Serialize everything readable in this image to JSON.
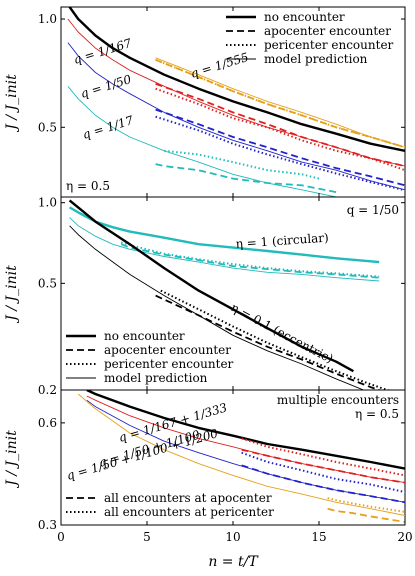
{
  "chart_data": [
    {
      "type": "line",
      "id": "top",
      "ylabel": "J / J_init",
      "xlim": [
        0,
        20
      ],
      "ylim": [
        0.32,
        1.08
      ],
      "yscale": "log",
      "yticks": [
        0.5,
        1.0
      ],
      "ytick_labels": [
        "0.5",
        "1.0"
      ],
      "legend_placement": "top-right",
      "legend": [
        {
          "label": "no encounter",
          "style": "solid-thick"
        },
        {
          "label": "apocenter encounter",
          "style": "dashed"
        },
        {
          "label": "pericenter encounter",
          "style": "dotted"
        },
        {
          "label": "model prediction",
          "style": "solid-thin"
        }
      ],
      "annotations": [
        {
          "text": "η = 0.5",
          "placement": "bottom-left"
        },
        {
          "text": "q = 1/555",
          "color": "#e6a11c"
        },
        {
          "text": "q = 1/167",
          "color": "#e0201e"
        },
        {
          "text": "q = 1/50",
          "color": "#2222cc"
        },
        {
          "text": "q = 1/17",
          "color": "#22bbbb"
        }
      ],
      "series": [
        {
          "style": "solid-thick",
          "color": "#000000",
          "x": [
            0.5,
            1,
            2,
            3,
            4,
            6,
            8,
            10,
            12,
            14,
            16,
            18,
            20
          ],
          "y": [
            1.08,
            1.0,
            0.9,
            0.83,
            0.78,
            0.7,
            0.64,
            0.59,
            0.55,
            0.51,
            0.48,
            0.45,
            0.43
          ]
        },
        {
          "style": "solid-thin",
          "color": "#e6a11c",
          "x": [
            5.5,
            8,
            10,
            12,
            14,
            16,
            18,
            20
          ],
          "y": [
            0.78,
            0.7,
            0.64,
            0.59,
            0.55,
            0.51,
            0.47,
            0.44
          ]
        },
        {
          "style": "dashed",
          "color": "#e6a11c",
          "x": [
            5.5,
            8,
            10,
            12,
            14,
            16,
            18,
            20
          ],
          "y": [
            0.77,
            0.69,
            0.63,
            0.58,
            0.54,
            0.5,
            0.47,
            0.44
          ]
        },
        {
          "style": "dotted",
          "color": "#e6a11c",
          "x": [
            5.5,
            8,
            10,
            12,
            14,
            16,
            18,
            20
          ],
          "y": [
            0.77,
            0.69,
            0.63,
            0.58,
            0.54,
            0.5,
            0.47,
            0.44
          ]
        },
        {
          "style": "solid-thin",
          "color": "#e0201e",
          "x": [
            0.4,
            1,
            2,
            3,
            4,
            6,
            8,
            10,
            12,
            14,
            16,
            18,
            20
          ],
          "y": [
            1.0,
            0.92,
            0.83,
            0.77,
            0.72,
            0.65,
            0.59,
            0.54,
            0.5,
            0.47,
            0.44,
            0.41,
            0.39
          ]
        },
        {
          "style": "dashed",
          "color": "#e0201e",
          "x": [
            5.5,
            8,
            10,
            12,
            14,
            16,
            18,
            20
          ],
          "y": [
            0.66,
            0.6,
            0.55,
            0.51,
            0.47,
            0.44,
            0.41,
            0.39
          ]
        },
        {
          "style": "dotted",
          "color": "#e0201e",
          "x": [
            5.5,
            8,
            10,
            12,
            14,
            16,
            18,
            20
          ],
          "y": [
            0.64,
            0.58,
            0.53,
            0.5,
            0.46,
            0.43,
            0.41,
            0.38
          ]
        },
        {
          "style": "solid-thin",
          "color": "#2222cc",
          "x": [
            0.4,
            1,
            2,
            3,
            4,
            6,
            8,
            10,
            12,
            14,
            16,
            18,
            20
          ],
          "y": [
            0.86,
            0.79,
            0.71,
            0.66,
            0.62,
            0.55,
            0.5,
            0.46,
            0.43,
            0.4,
            0.38,
            0.355,
            0.335
          ]
        },
        {
          "style": "dashed",
          "color": "#2222cc",
          "x": [
            5.5,
            8,
            10,
            12,
            14,
            16,
            18,
            20
          ],
          "y": [
            0.56,
            0.51,
            0.47,
            0.44,
            0.41,
            0.385,
            0.365,
            0.345
          ]
        },
        {
          "style": "dotted",
          "color": "#2222cc",
          "x": [
            5.5,
            8,
            10,
            12,
            14,
            16,
            18,
            20
          ],
          "y": [
            0.535,
            0.49,
            0.45,
            0.42,
            0.395,
            0.372,
            0.352,
            0.334
          ]
        },
        {
          "style": "solid-thin",
          "color": "#22bbbb",
          "x": [
            0.4,
            1,
            2,
            3,
            4,
            6,
            8,
            10,
            12,
            14,
            16,
            17
          ],
          "y": [
            0.65,
            0.6,
            0.54,
            0.5,
            0.47,
            0.43,
            0.4,
            0.37,
            0.35,
            0.335,
            0.32,
            0.315
          ]
        },
        {
          "style": "dashed",
          "color": "#22bbbb",
          "x": [
            5.5,
            6,
            8,
            10,
            12,
            14,
            16
          ],
          "y": [
            0.395,
            0.39,
            0.38,
            0.36,
            0.35,
            0.345,
            0.33
          ]
        },
        {
          "style": "dotted",
          "color": "#22bbbb",
          "x": [
            6,
            8,
            10,
            12,
            14,
            15
          ],
          "y": [
            0.43,
            0.42,
            0.4,
            0.38,
            0.37,
            0.36
          ]
        }
      ]
    },
    {
      "type": "line",
      "id": "middle",
      "ylabel": "J / J_init",
      "xlim": [
        0,
        20
      ],
      "ylim": [
        0.2,
        1.05
      ],
      "yscale": "log",
      "yticks": [
        0.2,
        0.5,
        1.0
      ],
      "ytick_labels": [
        "0.2",
        "0.5",
        "1.0"
      ],
      "legend_placement": "bottom-left",
      "legend": [
        {
          "label": "no encounter",
          "style": "solid-thick"
        },
        {
          "label": "apocenter encounter",
          "style": "dashed"
        },
        {
          "label": "pericenter encounter",
          "style": "dotted"
        },
        {
          "label": "model prediction",
          "style": "solid-thin"
        }
      ],
      "annotations": [
        {
          "text": "q = 1/50",
          "placement": "top-right"
        },
        {
          "text": "η = 1 (circular)",
          "color": "#22bbbb"
        },
        {
          "text": "η = 0.1 (eccentric)",
          "color": "#000000"
        }
      ],
      "series": [
        {
          "style": "solid-thick",
          "color": "#22bbbb",
          "x": [
            0.5,
            1,
            2,
            3,
            4,
            6,
            8,
            10,
            12,
            14,
            16,
            18.5
          ],
          "y": [
            0.96,
            0.92,
            0.85,
            0.81,
            0.78,
            0.74,
            0.7,
            0.68,
            0.66,
            0.64,
            0.62,
            0.6
          ]
        },
        {
          "style": "solid-thin",
          "color": "#22bbbb",
          "x": [
            0.5,
            1,
            2,
            3,
            4,
            6,
            8,
            10,
            12,
            14,
            16,
            18.5
          ],
          "y": [
            0.88,
            0.82,
            0.75,
            0.7,
            0.67,
            0.63,
            0.6,
            0.57,
            0.55,
            0.54,
            0.525,
            0.51
          ]
        },
        {
          "style": "dashed",
          "color": "#22bbbb",
          "x": [
            3.5,
            4,
            6,
            8,
            10,
            12,
            14,
            16,
            18.5
          ],
          "y": [
            0.7,
            0.68,
            0.64,
            0.61,
            0.58,
            0.565,
            0.55,
            0.54,
            0.525
          ]
        },
        {
          "style": "dotted",
          "color": "#22bbbb",
          "x": [
            3.5,
            4,
            6,
            8,
            10,
            12,
            14,
            16,
            18.5
          ],
          "y": [
            0.71,
            0.695,
            0.645,
            0.615,
            0.59,
            0.57,
            0.555,
            0.545,
            0.53
          ]
        },
        {
          "style": "solid-thick",
          "color": "#000000",
          "x": [
            0.5,
            1,
            2,
            4,
            6,
            8,
            10,
            12,
            14,
            16,
            17
          ],
          "y": [
            1.02,
            0.96,
            0.85,
            0.7,
            0.57,
            0.47,
            0.4,
            0.34,
            0.29,
            0.255,
            0.235
          ]
        },
        {
          "style": "solid-thin",
          "color": "#000000",
          "x": [
            0.5,
            1,
            2,
            4,
            6,
            8,
            10,
            12,
            14,
            16,
            18,
            20
          ],
          "y": [
            0.82,
            0.76,
            0.67,
            0.54,
            0.45,
            0.38,
            0.32,
            0.28,
            0.25,
            0.22,
            0.195,
            0.175
          ]
        },
        {
          "style": "dashed",
          "color": "#000000",
          "x": [
            5.5,
            8,
            10,
            12,
            14,
            16,
            18,
            20
          ],
          "y": [
            0.45,
            0.38,
            0.33,
            0.29,
            0.26,
            0.23,
            0.205,
            0.185
          ]
        },
        {
          "style": "dotted",
          "color": "#000000",
          "x": [
            5.8,
            8,
            10,
            12,
            14,
            16,
            18,
            20
          ],
          "y": [
            0.47,
            0.4,
            0.345,
            0.3,
            0.265,
            0.235,
            0.21,
            0.19
          ]
        }
      ]
    },
    {
      "type": "line",
      "id": "bottom",
      "xlabel": "n = t/T",
      "ylabel": "J / J_init",
      "xlim": [
        0,
        20
      ],
      "ylim": [
        0.3,
        0.75
      ],
      "yscale": "log",
      "xticks": [
        0,
        5,
        10,
        15,
        20
      ],
      "xtick_labels": [
        "0",
        "5",
        "10",
        "15",
        "20"
      ],
      "yticks": [
        0.3,
        0.6
      ],
      "ytick_labels": [
        "0.3",
        "0.6"
      ],
      "legend_placement": "bottom-left",
      "legend": [
        {
          "label": "all encounters at apocenter",
          "style": "dashed"
        },
        {
          "label": "all encounters at pericenter",
          "style": "dotted"
        }
      ],
      "annotations": [
        {
          "text": "multiple encounters",
          "placement": "top-right"
        },
        {
          "text": "η = 0.5",
          "placement": "top-right"
        },
        {
          "text": "q = 1/167 + 1/333",
          "color": "#e0201e"
        },
        {
          "text": "q = 1/50 + 1/100",
          "color": "#2222cc"
        },
        {
          "text": "q = 1/50 + 1/100 + 1/200",
          "color": "#e6a11c"
        }
      ],
      "series": [
        {
          "style": "solid-thick",
          "color": "#000000",
          "x": [
            1.5,
            2,
            4,
            6,
            8,
            10,
            12,
            14,
            16,
            18,
            20
          ],
          "y": [
            0.75,
            0.73,
            0.67,
            0.62,
            0.58,
            0.55,
            0.52,
            0.5,
            0.48,
            0.46,
            0.44
          ]
        },
        {
          "style": "solid-thin",
          "color": "#e0201e",
          "x": [
            1.5,
            2,
            4,
            6,
            8,
            10,
            12,
            14,
            16,
            18,
            20
          ],
          "y": [
            0.72,
            0.7,
            0.63,
            0.58,
            0.54,
            0.51,
            0.48,
            0.455,
            0.435,
            0.415,
            0.4
          ]
        },
        {
          "style": "dashed",
          "color": "#e0201e",
          "x": [
            10.5,
            12,
            14,
            16,
            18,
            20
          ],
          "y": [
            0.5,
            0.48,
            0.455,
            0.435,
            0.415,
            0.4
          ]
        },
        {
          "style": "dotted",
          "color": "#e0201e",
          "x": [
            10.5,
            12,
            14,
            16,
            18,
            20
          ],
          "y": [
            0.54,
            0.51,
            0.485,
            0.46,
            0.44,
            0.42
          ]
        },
        {
          "style": "solid-thin",
          "color": "#2222cc",
          "x": [
            1.5,
            2,
            4,
            6,
            8,
            10,
            12,
            14,
            16,
            18,
            20
          ],
          "y": [
            0.7,
            0.67,
            0.59,
            0.53,
            0.49,
            0.455,
            0.425,
            0.4,
            0.38,
            0.365,
            0.35
          ]
        },
        {
          "style": "dashed",
          "color": "#2222cc",
          "x": [
            10.5,
            12,
            14,
            16,
            18,
            20
          ],
          "y": [
            0.45,
            0.425,
            0.4,
            0.38,
            0.365,
            0.35
          ]
        },
        {
          "style": "dotted",
          "color": "#2222cc",
          "x": [
            10.5,
            12,
            14,
            16,
            18,
            20
          ],
          "y": [
            0.49,
            0.46,
            0.435,
            0.41,
            0.395,
            0.375
          ]
        },
        {
          "style": "solid-thin",
          "color": "#e6a11c",
          "x": [
            1.0,
            2,
            4,
            6,
            8,
            10,
            12,
            14,
            16,
            18,
            20
          ],
          "y": [
            0.73,
            0.66,
            0.56,
            0.5,
            0.455,
            0.42,
            0.39,
            0.37,
            0.35,
            0.335,
            0.32
          ]
        },
        {
          "style": "dashed",
          "color": "#e6a11c",
          "x": [
            15.5,
            16,
            17,
            18,
            19,
            20
          ],
          "y": [
            0.335,
            0.33,
            0.325,
            0.318,
            0.312,
            0.306
          ]
        },
        {
          "style": "dotted",
          "color": "#e6a11c",
          "x": [
            15.5,
            16,
            17,
            18,
            19,
            20
          ],
          "y": [
            0.36,
            0.355,
            0.347,
            0.34,
            0.334,
            0.328
          ]
        }
      ]
    }
  ]
}
